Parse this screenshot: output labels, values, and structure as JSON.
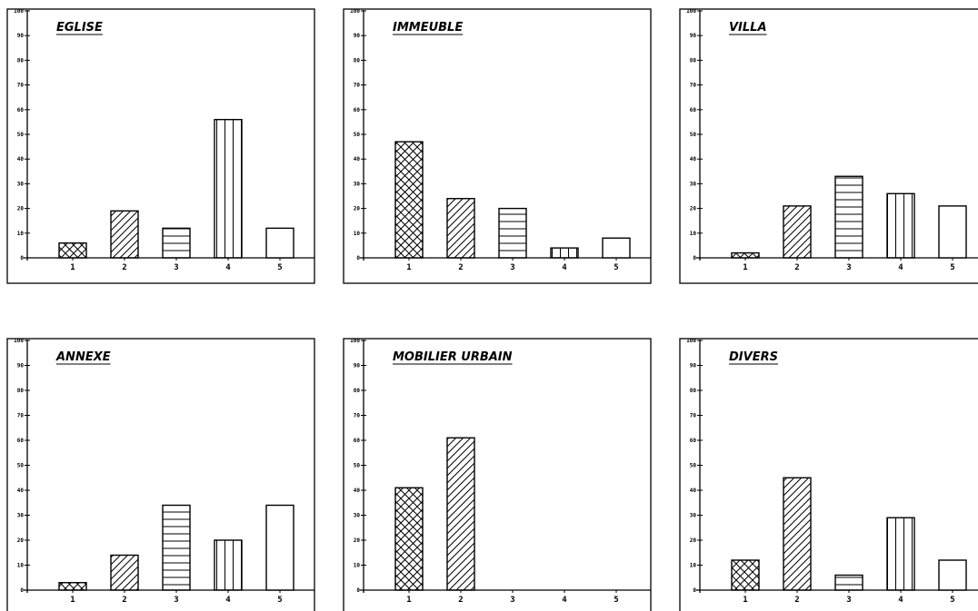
{
  "chart_data": [
    {
      "type": "bar",
      "title": "EGLISE",
      "categories": [
        "1",
        "2",
        "3",
        "4",
        "5"
      ],
      "values": [
        6,
        19,
        12,
        56,
        12
      ],
      "ylim": [
        0,
        100
      ],
      "yticks": [
        0,
        10,
        20,
        30,
        40,
        50,
        60,
        70,
        80,
        90,
        100
      ]
    },
    {
      "type": "bar",
      "title": "IMMEUBLE",
      "categories": [
        "1",
        "2",
        "3",
        "4",
        "5"
      ],
      "values": [
        47,
        24,
        20,
        4,
        8
      ],
      "ylim": [
        0,
        100
      ],
      "yticks": [
        0,
        10,
        20,
        30,
        40,
        50,
        60,
        70,
        80,
        90,
        100
      ]
    },
    {
      "type": "bar",
      "title": "VILLA",
      "categories": [
        "1",
        "2",
        "3",
        "4",
        "5"
      ],
      "values": [
        2,
        21,
        33,
        26,
        21
      ],
      "ylim": [
        0,
        100
      ],
      "yticks": [
        0,
        10,
        20,
        30,
        40,
        50,
        60,
        70,
        80,
        90,
        100
      ]
    },
    {
      "type": "bar",
      "title": "ANNEXE",
      "categories": [
        "1",
        "2",
        "3",
        "4",
        "5"
      ],
      "values": [
        3,
        14,
        34,
        20,
        34
      ],
      "ylim": [
        0,
        100
      ],
      "yticks": [
        0,
        10,
        20,
        30,
        40,
        50,
        60,
        70,
        80,
        90,
        100
      ]
    },
    {
      "type": "bar",
      "title": "MOBILIER URBAIN",
      "categories": [
        "1",
        "2",
        "3",
        "4",
        "5"
      ],
      "values": [
        41,
        61,
        0,
        0,
        0
      ],
      "ylim": [
        0,
        100
      ],
      "yticks": [
        0,
        10,
        20,
        30,
        40,
        50,
        60,
        70,
        80,
        90,
        100
      ]
    },
    {
      "type": "bar",
      "title": "DIVERS",
      "categories": [
        "1",
        "2",
        "3",
        "4",
        "5"
      ],
      "values": [
        12,
        45,
        6,
        29,
        12
      ],
      "ylim": [
        0,
        100
      ],
      "yticks": [
        0,
        10,
        20,
        30,
        40,
        50,
        60,
        70,
        80,
        90,
        100
      ]
    }
  ],
  "bar_patterns": [
    "crosshatch",
    "diagonal",
    "horizontal",
    "vertical",
    "empty"
  ]
}
